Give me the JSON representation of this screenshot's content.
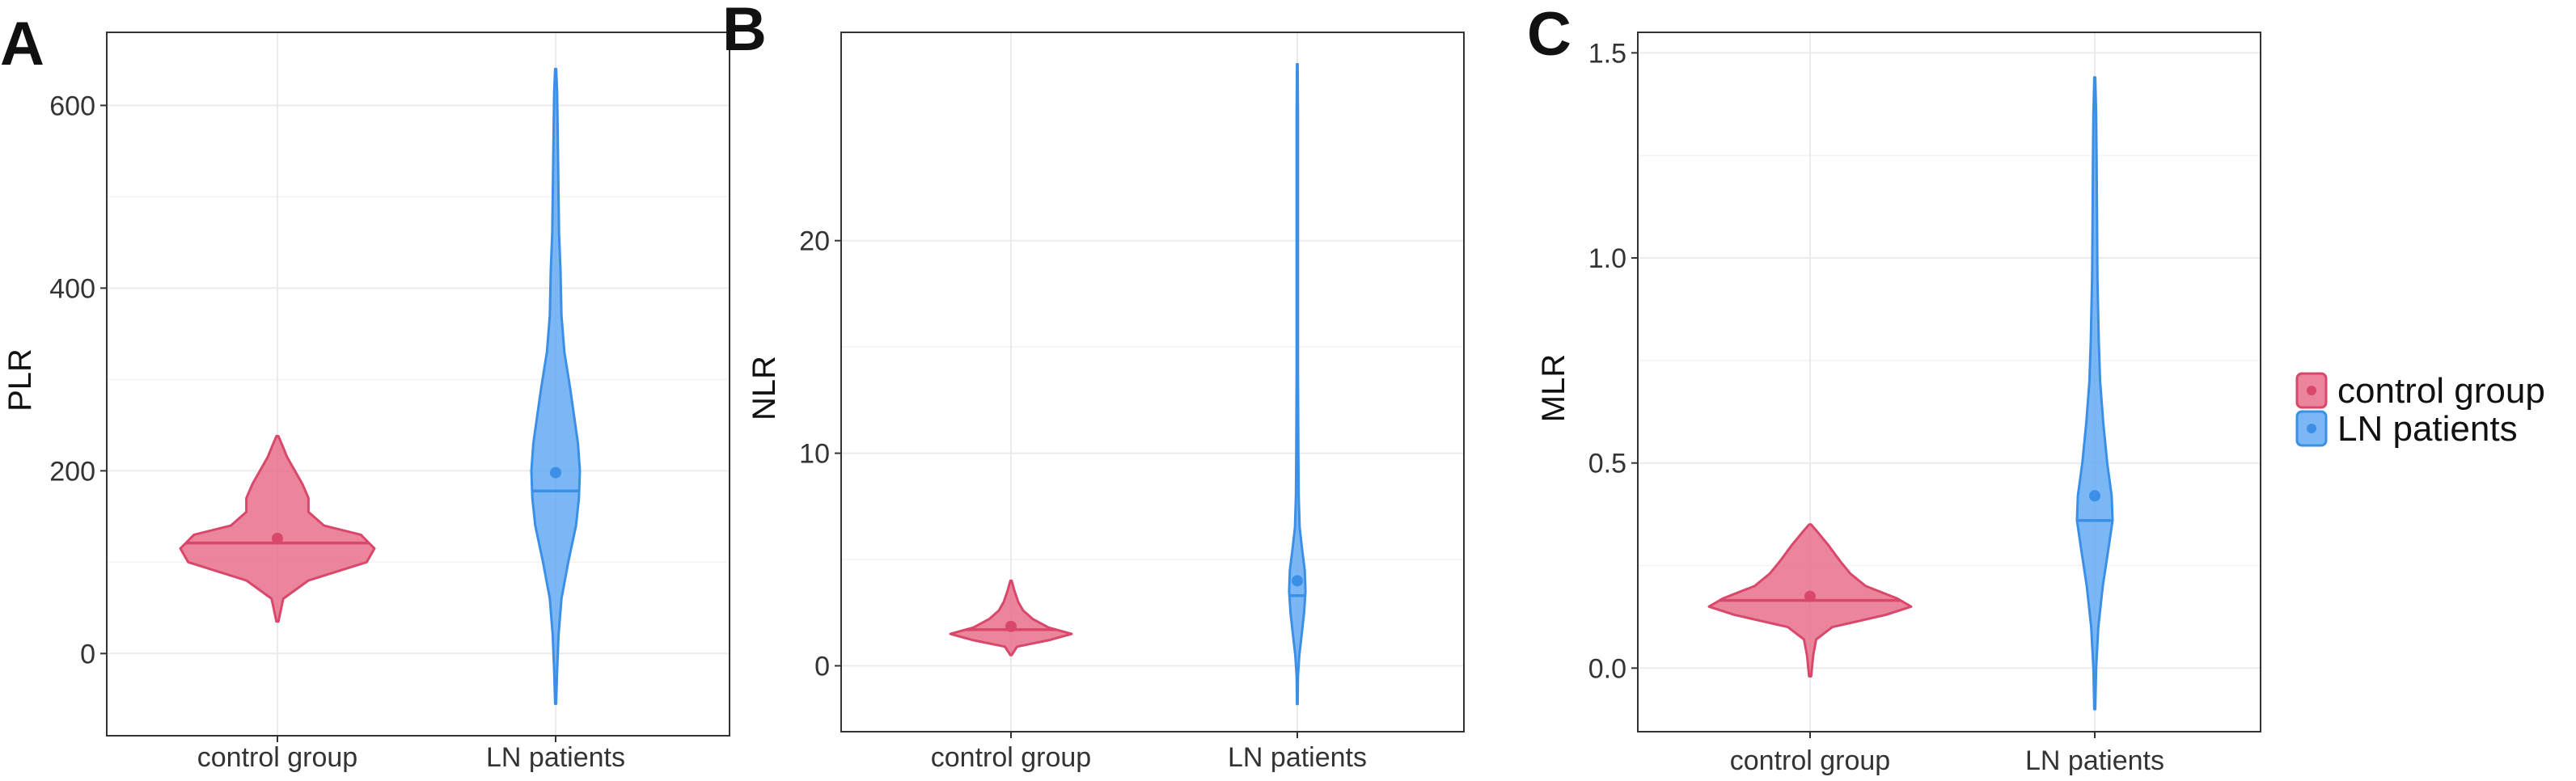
{
  "colors": {
    "control": "#e8708a",
    "control_stroke": "#d9486b",
    "ln": "#63aaf2",
    "ln_stroke": "#3b8fe6",
    "grid": "#ebebeb",
    "border": "#333333"
  },
  "legend": {
    "items": [
      {
        "label": "control group",
        "color": "#e8708a"
      },
      {
        "label": "LN patients",
        "color": "#63aaf2"
      }
    ]
  },
  "chart_data": [
    {
      "panel_label": "A",
      "type": "violin",
      "ylabel": "PLR",
      "categories": [
        "control group",
        "LN patients"
      ],
      "ylim": [
        -90,
        680
      ],
      "yticks": [
        0,
        200,
        400,
        600
      ],
      "ytick_labels": [
        "0",
        "200",
        "400",
        "600"
      ],
      "series": [
        {
          "name": "control group",
          "mean": 126,
          "median": 121,
          "profile": [
            [
              35,
              0.01
            ],
            [
              60,
              0.06
            ],
            [
              80,
              0.32
            ],
            [
              100,
              0.92
            ],
            [
              115,
              1.0
            ],
            [
              130,
              0.86
            ],
            [
              140,
              0.48
            ],
            [
              155,
              0.32
            ],
            [
              170,
              0.32
            ],
            [
              185,
              0.26
            ],
            [
              200,
              0.18
            ],
            [
              215,
              0.1
            ],
            [
              228,
              0.05
            ],
            [
              238,
              0.01
            ]
          ]
        },
        {
          "name": "LN patients",
          "mean": 198,
          "median": 178,
          "profile": [
            [
              -55,
              0.01
            ],
            [
              -20,
              0.03
            ],
            [
              20,
              0.06
            ],
            [
              60,
              0.12
            ],
            [
              100,
              0.26
            ],
            [
              140,
              0.42
            ],
            [
              170,
              0.48
            ],
            [
              200,
              0.5
            ],
            [
              230,
              0.46
            ],
            [
              260,
              0.38
            ],
            [
              290,
              0.3
            ],
            [
              330,
              0.18
            ],
            [
              370,
              0.12
            ],
            [
              420,
              0.1
            ],
            [
              460,
              0.07
            ],
            [
              500,
              0.06
            ],
            [
              540,
              0.05
            ],
            [
              580,
              0.04
            ],
            [
              615,
              0.03
            ],
            [
              640,
              0.01
            ]
          ]
        }
      ]
    },
    {
      "panel_label": "B",
      "type": "violin",
      "ylabel": "NLR",
      "categories": [
        "control group",
        "LN patients"
      ],
      "ylim": [
        -3.1,
        29.8
      ],
      "yticks": [
        0,
        10,
        20
      ],
      "ytick_labels": [
        "0",
        "10",
        "20"
      ],
      "series": [
        {
          "name": "control group",
          "mean": 1.85,
          "median": 1.7,
          "profile": [
            [
              0.5,
              0.01
            ],
            [
              0.9,
              0.1
            ],
            [
              1.2,
              0.62
            ],
            [
              1.5,
              1.0
            ],
            [
              1.8,
              0.62
            ],
            [
              2.2,
              0.36
            ],
            [
              2.6,
              0.2
            ],
            [
              3.0,
              0.12
            ],
            [
              3.5,
              0.06
            ],
            [
              4.0,
              0.01
            ]
          ]
        },
        {
          "name": "LN patients",
          "mean": 4.0,
          "median": 3.3,
          "profile": [
            [
              -1.8,
              0.01
            ],
            [
              -0.5,
              0.02
            ],
            [
              0.5,
              0.06
            ],
            [
              1.5,
              0.13
            ],
            [
              2.5,
              0.2
            ],
            [
              3.5,
              0.24
            ],
            [
              4.5,
              0.22
            ],
            [
              5.5,
              0.14
            ],
            [
              6.5,
              0.07
            ],
            [
              8,
              0.04
            ],
            [
              10,
              0.03
            ],
            [
              14,
              0.02
            ],
            [
              20,
              0.02
            ],
            [
              26,
              0.02
            ],
            [
              28.3,
              0.01
            ]
          ]
        }
      ]
    },
    {
      "panel_label": "C",
      "type": "violin",
      "ylabel": "MLR",
      "categories": [
        "control group",
        "LN patients"
      ],
      "ylim": [
        -0.155,
        1.55
      ],
      "yticks": [
        0.0,
        0.5,
        1.0,
        1.5
      ],
      "ytick_labels": [
        "0.0",
        "0.5",
        "1.0",
        "1.5"
      ],
      "series": [
        {
          "name": "control group",
          "mean": 0.175,
          "median": 0.165,
          "profile": [
            [
              -0.02,
              0.01
            ],
            [
              0.03,
              0.03
            ],
            [
              0.07,
              0.06
            ],
            [
              0.1,
              0.22
            ],
            [
              0.13,
              0.75
            ],
            [
              0.15,
              1.0
            ],
            [
              0.17,
              0.86
            ],
            [
              0.2,
              0.55
            ],
            [
              0.23,
              0.4
            ],
            [
              0.26,
              0.3
            ],
            [
              0.3,
              0.18
            ],
            [
              0.33,
              0.08
            ],
            [
              0.35,
              0.01
            ]
          ]
        },
        {
          "name": "LN patients",
          "mean": 0.42,
          "median": 0.36,
          "profile": [
            [
              -0.1,
              0.01
            ],
            [
              0.0,
              0.03
            ],
            [
              0.1,
              0.08
            ],
            [
              0.2,
              0.18
            ],
            [
              0.3,
              0.32
            ],
            [
              0.36,
              0.4
            ],
            [
              0.42,
              0.38
            ],
            [
              0.5,
              0.28
            ],
            [
              0.6,
              0.19
            ],
            [
              0.7,
              0.12
            ],
            [
              0.8,
              0.09
            ],
            [
              0.95,
              0.06
            ],
            [
              1.1,
              0.05
            ],
            [
              1.25,
              0.04
            ],
            [
              1.35,
              0.03
            ],
            [
              1.44,
              0.01
            ]
          ]
        }
      ]
    }
  ]
}
